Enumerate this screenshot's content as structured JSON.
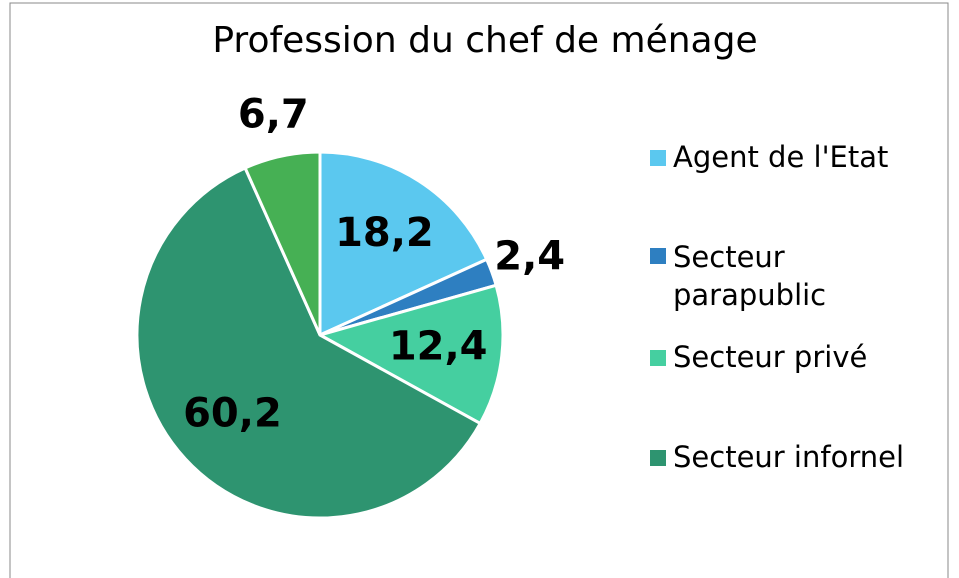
{
  "chart_data": {
    "type": "pie",
    "title": "Profession du chef de ménage",
    "categories": [
      "Agent de l'Etat",
      "Secteur parapublic",
      "Secteur privé",
      "Secteur infornel",
      null
    ],
    "values": [
      18.2,
      2.4,
      12.4,
      60.2,
      6.7
    ],
    "value_labels": [
      "18,2",
      "2,4",
      "12,4",
      "60,2",
      "6,7"
    ],
    "colors": [
      "#5bc8ef",
      "#2e7fc1",
      "#45cfa0",
      "#2e9470",
      "#46b054"
    ],
    "legend": "right"
  }
}
